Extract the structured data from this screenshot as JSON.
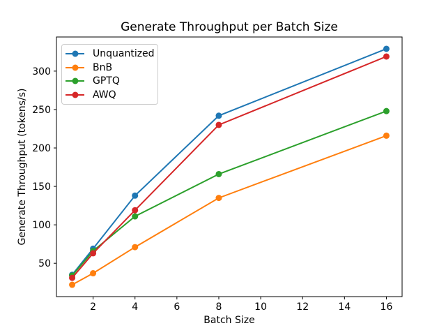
{
  "chart_data": {
    "type": "line",
    "title": "Generate Throughput per Batch Size",
    "xlabel": "Batch Size",
    "ylabel": "Generate Throughput (tokens/s)",
    "x": [
      1,
      2,
      4,
      8,
      16
    ],
    "series": [
      {
        "name": "Unquantized",
        "color": "#1f77b4",
        "values": [
          35,
          69,
          138,
          242,
          329
        ]
      },
      {
        "name": "BnB",
        "color": "#ff7f0e",
        "values": [
          22,
          37,
          71,
          135,
          216
        ]
      },
      {
        "name": "GPTQ",
        "color": "#2ca02c",
        "values": [
          34,
          66,
          111,
          166,
          248
        ]
      },
      {
        "name": "AWQ",
        "color": "#d62728",
        "values": [
          31,
          63,
          119,
          230,
          319
        ]
      }
    ],
    "xticks": [
      2,
      4,
      6,
      8,
      10,
      12,
      14,
      16
    ],
    "yticks": [
      50,
      100,
      150,
      200,
      250,
      300
    ],
    "xlim": [
      0.25,
      16.75
    ],
    "ylim": [
      6.6,
      344.4
    ],
    "grid": false,
    "legend_position": "upper left",
    "marker": "circle",
    "axes_color": "#000000",
    "background_color": "#ffffff"
  }
}
